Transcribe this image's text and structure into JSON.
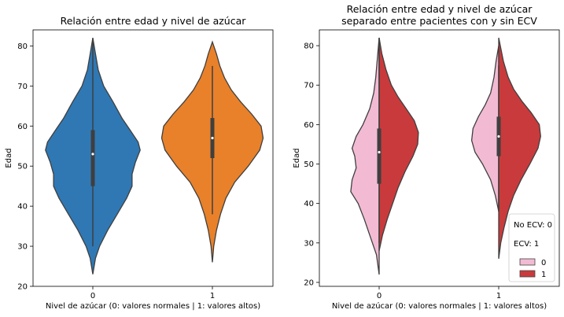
{
  "chart_data": [
    {
      "type": "violin",
      "title": "Relación entre edad y nivel de azúcar",
      "xlabel": "Nivel de azúcar (0: valores normales | 1: valores altos)",
      "ylabel": "Edad",
      "ylim": [
        20,
        84
      ],
      "yticks": [
        20,
        30,
        40,
        50,
        60,
        70,
        80
      ],
      "categories": [
        "0",
        "1"
      ],
      "grid": false,
      "violins": [
        {
          "category": "0",
          "color": "#2f78b4",
          "min": 23,
          "max": 82,
          "q1": 45,
          "median": 53,
          "q3": 59,
          "whisker_low": 30,
          "whisker_high": 82,
          "density": [
            [
              23,
              0
            ],
            [
              27,
              0.04
            ],
            [
              30,
              0.1
            ],
            [
              34,
              0.22
            ],
            [
              38,
              0.36
            ],
            [
              42,
              0.5
            ],
            [
              45,
              0.58
            ],
            [
              48,
              0.58
            ],
            [
              51,
              0.63
            ],
            [
              54,
              0.7
            ],
            [
              56,
              0.67
            ],
            [
              59,
              0.55
            ],
            [
              62,
              0.43
            ],
            [
              66,
              0.3
            ],
            [
              70,
              0.16
            ],
            [
              74,
              0.08
            ],
            [
              78,
              0.04
            ],
            [
              82,
              0
            ]
          ]
        },
        {
          "category": "1",
          "color": "#e8812a",
          "min": 26,
          "max": 81,
          "q1": 52,
          "median": 57,
          "q3": 62,
          "whisker_low": 38,
          "whisker_high": 75,
          "density": [
            [
              26,
              0
            ],
            [
              30,
              0.02
            ],
            [
              34,
              0.06
            ],
            [
              38,
              0.12
            ],
            [
              42,
              0.2
            ],
            [
              46,
              0.33
            ],
            [
              50,
              0.53
            ],
            [
              54,
              0.7
            ],
            [
              57,
              0.75
            ],
            [
              60,
              0.72
            ],
            [
              63,
              0.58
            ],
            [
              66,
              0.42
            ],
            [
              69,
              0.28
            ],
            [
              72,
              0.18
            ],
            [
              75,
              0.11
            ],
            [
              78,
              0.06
            ],
            [
              81,
              0
            ]
          ]
        }
      ]
    },
    {
      "type": "split-violin",
      "title": "Relación entre edad y nivel de azúcar",
      "subtitle": "separado entre pacientes con y sin ECV",
      "xlabel": "Nivel de azúcar (0: valores normales | 1: valores altos)",
      "ylabel": "Edad",
      "ylim": [
        19,
        84
      ],
      "yticks": [
        20,
        30,
        40,
        50,
        60,
        70,
        80
      ],
      "categories": [
        "0",
        "1"
      ],
      "grid": false,
      "legend": {
        "position": "bottom-right",
        "lines": [
          "No ECV: 0",
          "ECV: 1"
        ],
        "entries": [
          {
            "label": "0",
            "color": "#f2bbd3"
          },
          {
            "label": "1",
            "color": "#c93a3c"
          }
        ]
      },
      "groups": [
        {
          "category": "0",
          "q1": 45,
          "median": 53,
          "q3": 59,
          "whisker_low": 30,
          "whisker_high": 82,
          "left": {
            "label": "0",
            "color": "#f2bbd3",
            "density": [
              [
                22,
                0
              ],
              [
                27,
                0.04
              ],
              [
                31,
                0.12
              ],
              [
                36,
                0.22
              ],
              [
                40,
                0.31
              ],
              [
                43,
                0.42
              ],
              [
                46,
                0.4
              ],
              [
                49,
                0.34
              ],
              [
                52,
                0.36
              ],
              [
                54,
                0.4
              ],
              [
                57,
                0.34
              ],
              [
                60,
                0.24
              ],
              [
                64,
                0.14
              ],
              [
                68,
                0.08
              ],
              [
                72,
                0.05
              ],
              [
                76,
                0.03
              ],
              [
                82,
                0
              ]
            ]
          },
          "right": {
            "label": "1",
            "color": "#c93a3c",
            "density": [
              [
                28,
                0
              ],
              [
                32,
                0.05
              ],
              [
                36,
                0.12
              ],
              [
                40,
                0.2
              ],
              [
                44,
                0.28
              ],
              [
                48,
                0.38
              ],
              [
                52,
                0.5
              ],
              [
                55,
                0.57
              ],
              [
                58,
                0.58
              ],
              [
                61,
                0.52
              ],
              [
                64,
                0.4
              ],
              [
                67,
                0.28
              ],
              [
                70,
                0.18
              ],
              [
                74,
                0.1
              ],
              [
                78,
                0.04
              ],
              [
                82,
                0
              ]
            ]
          }
        },
        {
          "category": "1",
          "q1": 52,
          "median": 57,
          "q3": 62,
          "whisker_low": 38,
          "whisker_high": 75,
          "left": {
            "label": "0",
            "color": "#f2bbd3",
            "density": [
              [
                38,
                0
              ],
              [
                42,
                0.05
              ],
              [
                46,
                0.12
              ],
              [
                50,
                0.24
              ],
              [
                53,
                0.35
              ],
              [
                56,
                0.4
              ],
              [
                59,
                0.38
              ],
              [
                62,
                0.3
              ],
              [
                65,
                0.2
              ],
              [
                68,
                0.12
              ],
              [
                72,
                0.07
              ],
              [
                76,
                0.04
              ],
              [
                80,
                0
              ]
            ]
          },
          "right": {
            "label": "1",
            "color": "#c93a3c",
            "density": [
              [
                26,
                0
              ],
              [
                30,
                0.03
              ],
              [
                34,
                0.08
              ],
              [
                38,
                0.14
              ],
              [
                42,
                0.22
              ],
              [
                46,
                0.33
              ],
              [
                50,
                0.46
              ],
              [
                54,
                0.58
              ],
              [
                57,
                0.62
              ],
              [
                60,
                0.6
              ],
              [
                63,
                0.48
              ],
              [
                66,
                0.34
              ],
              [
                69,
                0.22
              ],
              [
                72,
                0.14
              ],
              [
                76,
                0.07
              ],
              [
                82,
                0
              ]
            ]
          }
        }
      ]
    }
  ]
}
